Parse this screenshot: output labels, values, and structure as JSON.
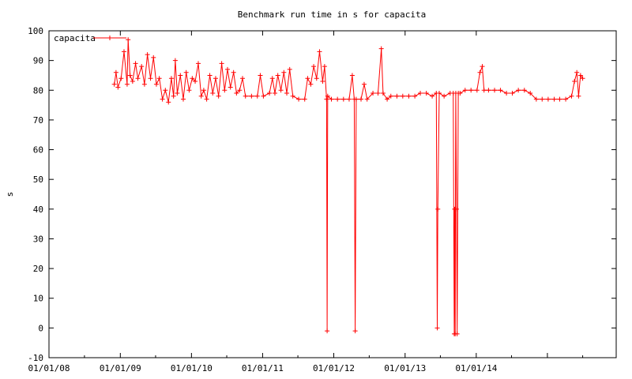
{
  "chart_data": {
    "type": "line",
    "title": "Benchmark run time in s for capacita",
    "xlabel": "",
    "ylabel": "s",
    "xlim": [
      "2008-01-01",
      "2015-12-20"
    ],
    "ylim": [
      -10,
      100
    ],
    "x_ticks": [
      "01/01/08",
      "01/01/09",
      "01/01/10",
      "01/01/11",
      "01/01/12",
      "01/01/13",
      "01/01/14"
    ],
    "y_ticks": [
      -10,
      0,
      10,
      20,
      30,
      40,
      50,
      60,
      70,
      80,
      90,
      100
    ],
    "grid": false,
    "legend": "top-left",
    "series": [
      {
        "name": "capacita",
        "color": "#ff0000",
        "marker": "plus",
        "points": [
          [
            "2008-12-01",
            82
          ],
          [
            "2008-12-10",
            86
          ],
          [
            "2008-12-20",
            81
          ],
          [
            "2009-01-05",
            84
          ],
          [
            "2009-01-20",
            93
          ],
          [
            "2009-02-05",
            82
          ],
          [
            "2009-02-10",
            97
          ],
          [
            "2009-02-20",
            85
          ],
          [
            "2009-03-05",
            83
          ],
          [
            "2009-03-20",
            89
          ],
          [
            "2009-04-01",
            84
          ],
          [
            "2009-04-20",
            88
          ],
          [
            "2009-05-05",
            82
          ],
          [
            "2009-05-20",
            92
          ],
          [
            "2009-06-05",
            84
          ],
          [
            "2009-06-20",
            91
          ],
          [
            "2009-07-05",
            82
          ],
          [
            "2009-07-20",
            84
          ],
          [
            "2009-08-05",
            77
          ],
          [
            "2009-08-20",
            80
          ],
          [
            "2009-09-05",
            76
          ],
          [
            "2009-09-20",
            84
          ],
          [
            "2009-10-01",
            78
          ],
          [
            "2009-10-10",
            90
          ],
          [
            "2009-10-20",
            79
          ],
          [
            "2009-11-05",
            85
          ],
          [
            "2009-11-20",
            77
          ],
          [
            "2009-12-05",
            86
          ],
          [
            "2009-12-20",
            80
          ],
          [
            "2010-01-05",
            84
          ],
          [
            "2010-01-20",
            83
          ],
          [
            "2010-02-05",
            89
          ],
          [
            "2010-02-20",
            78
          ],
          [
            "2010-03-05",
            80
          ],
          [
            "2010-03-20",
            77
          ],
          [
            "2010-04-05",
            85
          ],
          [
            "2010-04-20",
            79
          ],
          [
            "2010-05-05",
            84
          ],
          [
            "2010-05-20",
            78
          ],
          [
            "2010-06-05",
            89
          ],
          [
            "2010-06-20",
            80
          ],
          [
            "2010-07-05",
            87
          ],
          [
            "2010-07-20",
            81
          ],
          [
            "2010-08-05",
            86
          ],
          [
            "2010-08-20",
            79
          ],
          [
            "2010-09-05",
            80
          ],
          [
            "2010-09-20",
            84
          ],
          [
            "2010-10-05",
            78
          ],
          [
            "2010-11-05",
            78
          ],
          [
            "2010-12-05",
            78
          ],
          [
            "2010-12-20",
            85
          ],
          [
            "2011-01-05",
            78
          ],
          [
            "2011-02-05",
            79
          ],
          [
            "2011-02-20",
            84
          ],
          [
            "2011-03-05",
            79
          ],
          [
            "2011-03-20",
            85
          ],
          [
            "2011-04-05",
            80
          ],
          [
            "2011-04-20",
            86
          ],
          [
            "2011-05-05",
            79
          ],
          [
            "2011-05-20",
            87
          ],
          [
            "2011-06-05",
            78
          ],
          [
            "2011-07-05",
            77
          ],
          [
            "2011-08-05",
            77
          ],
          [
            "2011-08-20",
            84
          ],
          [
            "2011-09-05",
            82
          ],
          [
            "2011-09-20",
            88
          ],
          [
            "2011-10-05",
            84
          ],
          [
            "2011-10-20",
            93
          ],
          [
            "2011-11-05",
            83
          ],
          [
            "2011-11-15",
            88
          ],
          [
            "2011-11-25",
            77
          ],
          [
            "2011-11-28",
            -1
          ],
          [
            "2011-12-01",
            78
          ],
          [
            "2011-12-20",
            77
          ],
          [
            "2012-01-20",
            77
          ],
          [
            "2012-02-20",
            77
          ],
          [
            "2012-03-20",
            77
          ],
          [
            "2012-04-05",
            85
          ],
          [
            "2012-04-15",
            77
          ],
          [
            "2012-04-20",
            -1
          ],
          [
            "2012-04-25",
            77
          ],
          [
            "2012-05-20",
            77
          ],
          [
            "2012-06-05",
            82
          ],
          [
            "2012-06-20",
            77
          ],
          [
            "2012-07-20",
            79
          ],
          [
            "2012-08-15",
            79
          ],
          [
            "2012-09-01",
            94
          ],
          [
            "2012-09-10",
            79
          ],
          [
            "2012-10-01",
            77
          ],
          [
            "2012-10-20",
            78
          ],
          [
            "2012-11-20",
            78
          ],
          [
            "2012-12-20",
            78
          ],
          [
            "2013-01-20",
            78
          ],
          [
            "2013-02-20",
            78
          ],
          [
            "2013-03-20",
            79
          ],
          [
            "2013-04-20",
            79
          ],
          [
            "2013-05-20",
            78
          ],
          [
            "2013-06-10",
            79
          ],
          [
            "2013-06-15",
            0
          ],
          [
            "2013-06-18",
            40
          ],
          [
            "2013-06-25",
            79
          ],
          [
            "2013-07-20",
            78
          ],
          [
            "2013-08-20",
            79
          ],
          [
            "2013-09-05",
            79
          ],
          [
            "2013-09-10",
            -2
          ],
          [
            "2013-09-12",
            40
          ],
          [
            "2013-09-15",
            -2
          ],
          [
            "2013-09-18",
            79
          ],
          [
            "2013-09-22",
            40
          ],
          [
            "2013-09-25",
            -2
          ],
          [
            "2013-10-01",
            79
          ],
          [
            "2013-10-10",
            79
          ],
          [
            "2013-11-05",
            80
          ],
          [
            "2013-12-05",
            80
          ],
          [
            "2014-01-05",
            80
          ],
          [
            "2014-01-20",
            86
          ],
          [
            "2014-02-01",
            88
          ],
          [
            "2014-02-10",
            80
          ],
          [
            "2014-03-05",
            80
          ],
          [
            "2014-04-05",
            80
          ],
          [
            "2014-05-05",
            80
          ],
          [
            "2014-06-05",
            79
          ],
          [
            "2014-07-05",
            79
          ],
          [
            "2014-08-05",
            80
          ],
          [
            "2014-09-05",
            80
          ],
          [
            "2014-10-05",
            79
          ],
          [
            "2014-11-05",
            77
          ],
          [
            "2014-12-05",
            77
          ],
          [
            "2015-01-05",
            77
          ],
          [
            "2015-02-05",
            77
          ],
          [
            "2015-03-05",
            77
          ],
          [
            "2015-04-05",
            77
          ],
          [
            "2015-05-05",
            78
          ],
          [
            "2015-05-20",
            83
          ],
          [
            "2015-06-01",
            86
          ],
          [
            "2015-06-10",
            78
          ],
          [
            "2015-06-20",
            85
          ],
          [
            "2015-07-01",
            84
          ]
        ]
      }
    ]
  },
  "colors": {
    "series": "#ff0000",
    "axes": "#000000",
    "background": "#ffffff"
  }
}
